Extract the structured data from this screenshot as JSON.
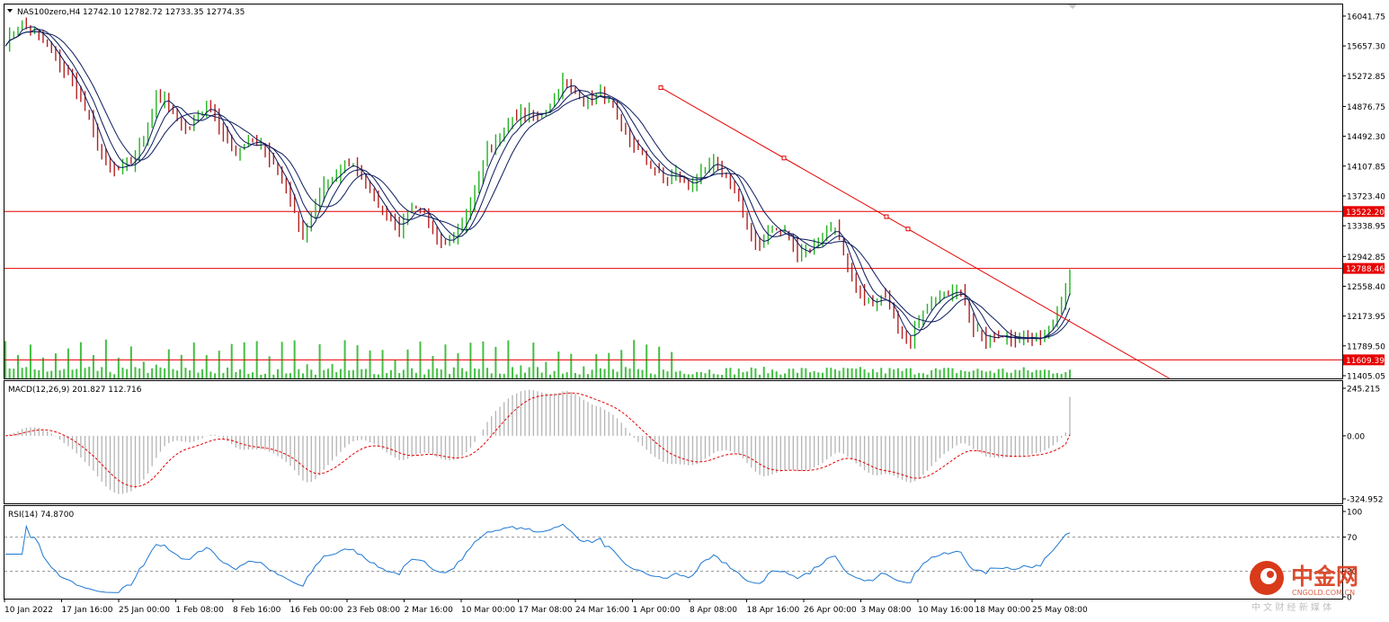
{
  "header": {
    "symbol": "NAS100zero,H4",
    "ohlc": "12742.10 12782.72 12733.35 12774.35",
    "macd": "MACD(12,26,9) 201.827 112.716",
    "rsi": "RSI(14) 74.8700"
  },
  "colors": {
    "bull": "#22b422",
    "bear": "#b42222",
    "ma": "#0a1a5c",
    "level": "#e60000",
    "trend": "#e60000",
    "level_label_bg": "#e60000",
    "macd_hist": "#b4b4b4",
    "macd_signal": "#e60000",
    "rsi": "#1e78d2",
    "grid": "#9a9a9a",
    "watermark": "#d83a1a"
  },
  "watermark": {
    "cn": "中金网",
    "en": "CNGOLD.COM.CN",
    "slogan": "中 文 财 经 新 媒 体"
  },
  "chart_data": {
    "type": "candlestick",
    "timeframe": "H4",
    "y_ticks": [
      16041.75,
      15657.3,
      15272.85,
      14876.75,
      14492.3,
      14107.85,
      13723.4,
      13338.95,
      12942.85,
      12558.4,
      12173.95,
      11789.5,
      11405.05
    ],
    "ylim": [
      11370,
      16180
    ],
    "x_ticks": [
      "10 Jan 2022",
      "17 Jan 16:00",
      "25 Jan 00:00",
      "1 Feb 08:00",
      "8 Feb 16:00",
      "16 Feb 00:00",
      "23 Feb 08:00",
      "2 Mar 16:00",
      "10 Mar 00:00",
      "17 Mar 08:00",
      "24 Mar 16:00",
      "1 Apr 00:00",
      "8 Apr 08:00",
      "18 Apr 16:00",
      "26 Apr 00:00",
      "3 May 08:00",
      "10 May 16:00",
      "18 May 00:00",
      "25 May 08:00"
    ],
    "levels": [
      {
        "value": 13522.2,
        "label": "13522.20"
      },
      {
        "value": 12788.46,
        "label": "12788.46"
      },
      {
        "value": 11609.39,
        "label": "11609.39"
      }
    ],
    "trendline": {
      "from": {
        "date": "1 Apr 00:00",
        "price": 15120
      },
      "to": {
        "date": "25 May 08:00",
        "price": 12150
      }
    },
    "price_path": [
      [
        0,
        15700
      ],
      [
        4,
        15950
      ],
      [
        8,
        15800
      ],
      [
        12,
        15500
      ],
      [
        16,
        15200
      ],
      [
        20,
        14700
      ],
      [
        24,
        14100
      ],
      [
        27,
        14050
      ],
      [
        30,
        14150
      ],
      [
        33,
        14450
      ],
      [
        36,
        15000
      ],
      [
        38,
        14950
      ],
      [
        41,
        14700
      ],
      [
        44,
        14600
      ],
      [
        46,
        14800
      ],
      [
        49,
        14900
      ],
      [
        52,
        14500
      ],
      [
        55,
        14300
      ],
      [
        58,
        14450
      ],
      [
        61,
        14400
      ],
      [
        64,
        14100
      ],
      [
        67,
        13800
      ],
      [
        69,
        13500
      ],
      [
        71,
        13150
      ],
      [
        73,
        13450
      ],
      [
        76,
        13900
      ],
      [
        79,
        14000
      ],
      [
        82,
        14150
      ],
      [
        85,
        14000
      ],
      [
        88,
        13700
      ],
      [
        91,
        13450
      ],
      [
        94,
        13300
      ],
      [
        97,
        13550
      ],
      [
        100,
        13500
      ],
      [
        103,
        13200
      ],
      [
        106,
        13150
      ],
      [
        109,
        13350
      ],
      [
        112,
        13800
      ],
      [
        115,
        14300
      ],
      [
        118,
        14500
      ],
      [
        121,
        14700
      ],
      [
        124,
        14800
      ],
      [
        127,
        14750
      ],
      [
        130,
        14900
      ],
      [
        133,
        15200
      ],
      [
        136,
        15050
      ],
      [
        139,
        14950
      ],
      [
        142,
        15050
      ],
      [
        145,
        14850
      ],
      [
        148,
        14500
      ],
      [
        151,
        14300
      ],
      [
        154,
        14100
      ],
      [
        157,
        13950
      ],
      [
        160,
        14000
      ],
      [
        163,
        13850
      ],
      [
        166,
        14000
      ],
      [
        169,
        14150
      ],
      [
        172,
        14000
      ],
      [
        175,
        13700
      ],
      [
        177,
        13250
      ],
      [
        180,
        13100
      ],
      [
        183,
        13300
      ],
      [
        186,
        13250
      ],
      [
        189,
        13000
      ],
      [
        192,
        13050
      ],
      [
        195,
        13200
      ],
      [
        198,
        13350
      ],
      [
        201,
        12750
      ],
      [
        204,
        12450
      ],
      [
        207,
        12300
      ],
      [
        210,
        12450
      ],
      [
        213,
        12050
      ],
      [
        216,
        11850
      ],
      [
        219,
        12250
      ],
      [
        222,
        12400
      ],
      [
        225,
        12450
      ],
      [
        228,
        12500
      ],
      [
        231,
        12000
      ],
      [
        234,
        11850
      ],
      [
        237,
        11950
      ],
      [
        240,
        11900
      ],
      [
        243,
        11900
      ],
      [
        246,
        11850
      ],
      [
        249,
        12050
      ],
      [
        252,
        12350
      ],
      [
        254,
        12775
      ]
    ],
    "macd": {
      "label": "MACD(12,26,9)",
      "values": "201.827 112.716",
      "y_ticks": [
        245.215,
        0.0,
        -324.952
      ],
      "ylim": [
        -324.952,
        245.215
      ]
    },
    "rsi": {
      "label": "RSI(14)",
      "value": 74.87,
      "y_ticks": [
        100,
        70,
        30,
        0
      ],
      "ylim": [
        0,
        100
      ]
    }
  }
}
